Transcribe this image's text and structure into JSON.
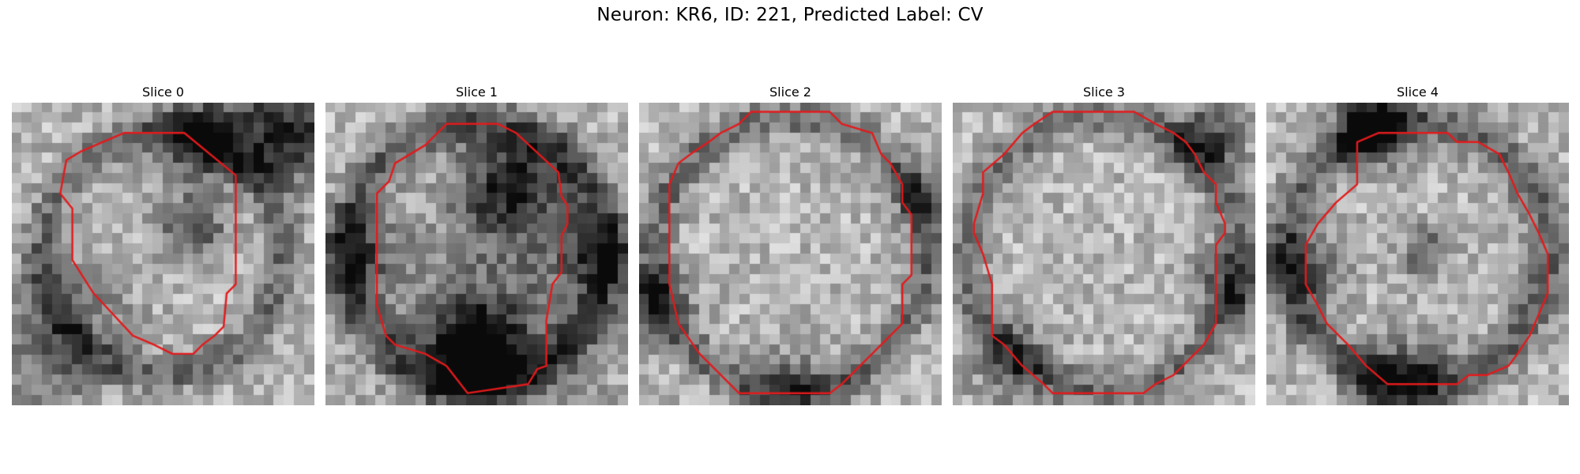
{
  "figure": {
    "title": "Neuron: KR6, ID: 221, Predicted Label: CV"
  },
  "contour_color": "#e31a1c",
  "colormap": "grayscale",
  "slices": [
    {
      "title": "Slice 0",
      "seed": 11,
      "dark_blobs": [
        [
          0.62,
          0.12,
          0.1,
          0.55
        ],
        [
          0.9,
          0.1,
          0.12,
          0.6
        ],
        [
          0.2,
          0.72,
          0.15,
          0.25
        ],
        [
          0.6,
          0.42,
          0.07,
          0.45
        ],
        [
          0.1,
          0.92,
          0.1,
          0.2
        ]
      ],
      "ring": {
        "r": 0.4,
        "w": 0.06,
        "a": 0.3
      },
      "contour": [
        [
          0.37,
          0.1
        ],
        [
          0.57,
          0.1
        ],
        [
          0.74,
          0.24
        ],
        [
          0.74,
          0.6
        ],
        [
          0.71,
          0.63
        ],
        [
          0.7,
          0.74
        ],
        [
          0.67,
          0.77
        ],
        [
          0.63,
          0.8
        ],
        [
          0.6,
          0.83
        ],
        [
          0.53,
          0.83
        ],
        [
          0.47,
          0.8
        ],
        [
          0.4,
          0.77
        ],
        [
          0.27,
          0.63
        ],
        [
          0.2,
          0.52
        ],
        [
          0.2,
          0.35
        ],
        [
          0.16,
          0.3
        ],
        [
          0.18,
          0.19
        ],
        [
          0.23,
          0.16
        ],
        [
          0.3,
          0.13
        ]
      ]
    },
    {
      "title": "Slice 1",
      "seed": 23,
      "dark_blobs": [
        [
          0.62,
          0.28,
          0.12,
          0.6
        ],
        [
          0.5,
          0.83,
          0.1,
          0.75
        ],
        [
          0.1,
          0.5,
          0.1,
          0.35
        ],
        [
          0.9,
          0.5,
          0.1,
          0.35
        ],
        [
          0.55,
          0.75,
          0.25,
          0.3
        ]
      ],
      "ring": {
        "r": 0.43,
        "w": 0.07,
        "a": 0.35
      },
      "contour": [
        [
          0.4,
          0.07
        ],
        [
          0.57,
          0.07
        ],
        [
          0.63,
          0.1
        ],
        [
          0.77,
          0.23
        ],
        [
          0.78,
          0.31
        ],
        [
          0.8,
          0.34
        ],
        [
          0.8,
          0.4
        ],
        [
          0.78,
          0.44
        ],
        [
          0.78,
          0.56
        ],
        [
          0.75,
          0.6
        ],
        [
          0.75,
          0.6
        ],
        [
          0.73,
          0.72
        ],
        [
          0.73,
          0.87
        ],
        [
          0.7,
          0.88
        ],
        [
          0.67,
          0.93
        ],
        [
          0.47,
          0.96
        ],
        [
          0.4,
          0.87
        ],
        [
          0.33,
          0.83
        ],
        [
          0.23,
          0.8
        ],
        [
          0.2,
          0.77
        ],
        [
          0.17,
          0.67
        ],
        [
          0.17,
          0.3
        ],
        [
          0.21,
          0.26
        ],
        [
          0.23,
          0.2
        ],
        [
          0.33,
          0.14
        ],
        [
          0.37,
          0.1
        ]
      ]
    },
    {
      "title": "Slice 2",
      "seed": 37,
      "dark_blobs": [
        [
          0.05,
          0.65,
          0.08,
          0.45
        ],
        [
          0.95,
          0.3,
          0.07,
          0.35
        ],
        [
          0.5,
          0.96,
          0.1,
          0.3
        ]
      ],
      "ring": {
        "r": 0.45,
        "w": 0.06,
        "a": 0.32
      },
      "contour": [
        [
          0.37,
          0.03
        ],
        [
          0.63,
          0.03
        ],
        [
          0.67,
          0.07
        ],
        [
          0.77,
          0.1
        ],
        [
          0.8,
          0.17
        ],
        [
          0.83,
          0.2
        ],
        [
          0.87,
          0.27
        ],
        [
          0.87,
          0.33
        ],
        [
          0.9,
          0.37
        ],
        [
          0.9,
          0.57
        ],
        [
          0.87,
          0.6
        ],
        [
          0.87,
          0.73
        ],
        [
          0.8,
          0.8
        ],
        [
          0.77,
          0.83
        ],
        [
          0.73,
          0.87
        ],
        [
          0.67,
          0.93
        ],
        [
          0.63,
          0.96
        ],
        [
          0.33,
          0.96
        ],
        [
          0.27,
          0.9
        ],
        [
          0.2,
          0.83
        ],
        [
          0.13,
          0.73
        ],
        [
          0.1,
          0.6
        ],
        [
          0.1,
          0.27
        ],
        [
          0.13,
          0.2
        ],
        [
          0.17,
          0.17
        ],
        [
          0.23,
          0.13
        ],
        [
          0.27,
          0.1
        ],
        [
          0.33,
          0.07
        ]
      ]
    },
    {
      "title": "Slice 3",
      "seed": 49,
      "dark_blobs": [
        [
          0.85,
          0.12,
          0.08,
          0.45
        ],
        [
          0.9,
          0.6,
          0.08,
          0.35
        ],
        [
          0.2,
          0.85,
          0.1,
          0.3
        ]
      ],
      "ring": {
        "r": 0.45,
        "w": 0.06,
        "a": 0.3
      },
      "contour": [
        [
          0.33,
          0.03
        ],
        [
          0.6,
          0.03
        ],
        [
          0.67,
          0.07
        ],
        [
          0.73,
          0.1
        ],
        [
          0.77,
          0.13
        ],
        [
          0.8,
          0.17
        ],
        [
          0.83,
          0.23
        ],
        [
          0.87,
          0.27
        ],
        [
          0.87,
          0.33
        ],
        [
          0.9,
          0.4
        ],
        [
          0.9,
          0.43
        ],
        [
          0.87,
          0.47
        ],
        [
          0.87,
          0.6
        ],
        [
          0.87,
          0.73
        ],
        [
          0.83,
          0.8
        ],
        [
          0.8,
          0.83
        ],
        [
          0.73,
          0.9
        ],
        [
          0.67,
          0.93
        ],
        [
          0.63,
          0.96
        ],
        [
          0.33,
          0.96
        ],
        [
          0.3,
          0.93
        ],
        [
          0.23,
          0.87
        ],
        [
          0.17,
          0.8
        ],
        [
          0.13,
          0.77
        ],
        [
          0.13,
          0.6
        ],
        [
          0.1,
          0.5
        ],
        [
          0.07,
          0.43
        ],
        [
          0.07,
          0.4
        ],
        [
          0.1,
          0.3
        ],
        [
          0.1,
          0.23
        ],
        [
          0.17,
          0.17
        ],
        [
          0.23,
          0.1
        ],
        [
          0.27,
          0.07
        ]
      ]
    },
    {
      "title": "Slice 4",
      "seed": 61,
      "dark_blobs": [
        [
          0.35,
          0.08,
          0.08,
          0.75
        ],
        [
          0.45,
          0.92,
          0.1,
          0.45
        ],
        [
          0.13,
          0.55,
          0.09,
          0.35
        ],
        [
          0.53,
          0.5,
          0.06,
          0.35
        ]
      ],
      "ring": {
        "r": 0.43,
        "w": 0.07,
        "a": 0.35
      },
      "contour": [
        [
          0.3,
          0.13
        ],
        [
          0.37,
          0.1
        ],
        [
          0.6,
          0.1
        ],
        [
          0.63,
          0.13
        ],
        [
          0.7,
          0.13
        ],
        [
          0.77,
          0.17
        ],
        [
          0.8,
          0.23
        ],
        [
          0.83,
          0.3
        ],
        [
          0.87,
          0.37
        ],
        [
          0.9,
          0.43
        ],
        [
          0.93,
          0.5
        ],
        [
          0.93,
          0.63
        ],
        [
          0.9,
          0.7
        ],
        [
          0.87,
          0.77
        ],
        [
          0.83,
          0.83
        ],
        [
          0.8,
          0.87
        ],
        [
          0.73,
          0.9
        ],
        [
          0.67,
          0.9
        ],
        [
          0.63,
          0.93
        ],
        [
          0.4,
          0.93
        ],
        [
          0.33,
          0.87
        ],
        [
          0.27,
          0.8
        ],
        [
          0.2,
          0.73
        ],
        [
          0.17,
          0.67
        ],
        [
          0.13,
          0.6
        ],
        [
          0.13,
          0.53
        ],
        [
          0.13,
          0.5
        ],
        [
          0.13,
          0.47
        ],
        [
          0.17,
          0.4
        ],
        [
          0.23,
          0.33
        ],
        [
          0.3,
          0.27
        ]
      ]
    }
  ]
}
